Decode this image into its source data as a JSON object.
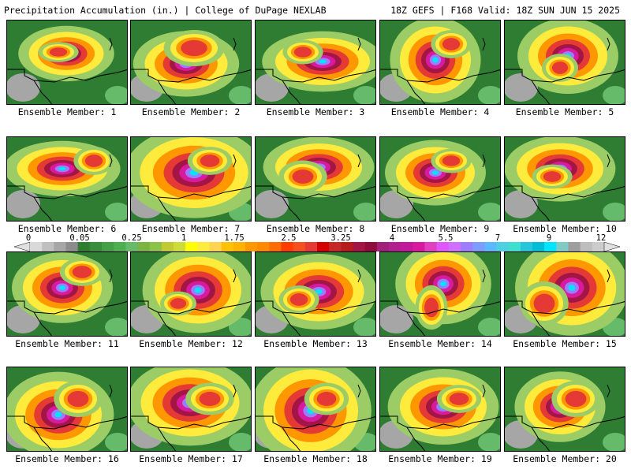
{
  "header": {
    "title": "Precipitation Accumulation (in.) | College of DuPage NEXLAB",
    "run_info": "18Z GEFS | F168 Valid: 18Z SUN JUN 15 2025"
  },
  "colorbar": {
    "tick_labels": [
      "0",
      "0.05",
      "0.25",
      "1",
      "1.75",
      "2.5",
      "3.25",
      "4",
      "5.5",
      "7",
      "9",
      "12"
    ],
    "colors": [
      "#d9d9d9",
      "#bfbfbf",
      "#a6a6a6",
      "#8c8c8c",
      "#2e7d32",
      "#388e3c",
      "#43a047",
      "#4caf50",
      "#66bb6a",
      "#7cb342",
      "#8bc34a",
      "#c0ca33",
      "#cddc39",
      "#ffff00",
      "#ffeb3b",
      "#ffd54f",
      "#ffc107",
      "#ffb300",
      "#ff9800",
      "#ff8a00",
      "#ff6d00",
      "#ff3d00",
      "#f4511e",
      "#e53935",
      "#d50000",
      "#c62828",
      "#b71c1c",
      "#a31545",
      "#8e0d3c",
      "#a0207a",
      "#b0208f",
      "#c2189b",
      "#d81b9e",
      "#e040c0",
      "#e056fd",
      "#d070ff",
      "#9c7cff",
      "#7c9cff",
      "#5cb8ff",
      "#4dd0e1",
      "#40e0d0",
      "#26c6da",
      "#00bcd4",
      "#00e5ff",
      "#80cbc4",
      "#9e9e9e",
      "#bdbdbd",
      "#cccccc"
    ],
    "arrow_color": "#e0e0e0"
  },
  "members": [
    {
      "label": "Ensemble Member: 1"
    },
    {
      "label": "Ensemble Member: 2"
    },
    {
      "label": "Ensemble Member: 3"
    },
    {
      "label": "Ensemble Member: 4"
    },
    {
      "label": "Ensemble Member: 5"
    },
    {
      "label": "Ensemble Member: 6"
    },
    {
      "label": "Ensemble Member: 7"
    },
    {
      "label": "Ensemble Member: 8"
    },
    {
      "label": "Ensemble Member: 9"
    },
    {
      "label": "Ensemble Member: 10"
    },
    {
      "label": "Ensemble Member: 11"
    },
    {
      "label": "Ensemble Member: 12"
    },
    {
      "label": "Ensemble Member: 13"
    },
    {
      "label": "Ensemble Member: 14"
    },
    {
      "label": "Ensemble Member: 15"
    },
    {
      "label": "Ensemble Member: 16"
    },
    {
      "label": "Ensemble Member: 17"
    },
    {
      "label": "Ensemble Member: 18"
    },
    {
      "label": "Ensemble Member: 19"
    },
    {
      "label": "Ensemble Member: 20"
    }
  ],
  "palette": {
    "background_green": "#2e7d32",
    "light_green": "#66bb6a",
    "yellow_green": "#9ccc65",
    "yellow": "#ffeb3b",
    "orange": "#ff9800",
    "red": "#e53935",
    "dark_red": "#a31545",
    "magenta": "#d81b9e",
    "purple": "#9c7cff",
    "cyan": "#00e5ff",
    "gray": "#a6a6a6",
    "border_line": "#000000"
  }
}
